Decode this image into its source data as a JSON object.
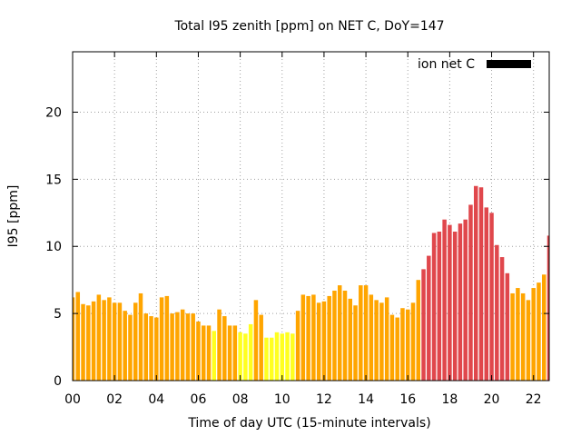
{
  "colors": {
    "high": "#e0474c",
    "mid": "#ffa500",
    "low": "#ffff20",
    "legend_swatch": "#000000",
    "grid": "#a0a0a0"
  },
  "chart_data": {
    "type": "bar",
    "title": "Total I95 zenith [ppm] on NET C, DoY=147",
    "xlabel": "Time of day UTC (15-minute intervals)",
    "ylabel": "I95 [ppm]",
    "xlim": [
      0,
      22.75
    ],
    "ylim": [
      0,
      24.5
    ],
    "x_ticks": [
      "00",
      "02",
      "04",
      "06",
      "08",
      "10",
      "12",
      "14",
      "16",
      "18",
      "20",
      "22"
    ],
    "x_tick_values": [
      0,
      2,
      4,
      6,
      8,
      10,
      12,
      14,
      16,
      18,
      20,
      22
    ],
    "y_ticks": [
      "0",
      "5",
      "10",
      "15",
      "20"
    ],
    "y_tick_values": [
      0,
      5,
      10,
      15,
      20
    ],
    "grid": true,
    "legend": {
      "label": "ion net C",
      "placement": "top-right"
    },
    "x_start": 0,
    "x_step": 0.25,
    "values": [
      6.2,
      6.6,
      5.7,
      5.6,
      5.9,
      6.4,
      6.0,
      6.2,
      5.8,
      5.8,
      5.2,
      4.9,
      5.8,
      6.5,
      5.0,
      4.8,
      4.7,
      6.2,
      6.3,
      5.0,
      5.1,
      5.3,
      5.0,
      5.0,
      4.4,
      4.1,
      4.1,
      3.7,
      5.3,
      4.8,
      4.1,
      4.1,
      3.6,
      3.5,
      4.2,
      6.0,
      4.9,
      3.2,
      3.2,
      3.6,
      3.5,
      3.6,
      3.5,
      5.2,
      6.4,
      6.3,
      6.4,
      5.8,
      5.9,
      6.3,
      6.7,
      7.1,
      6.7,
      6.1,
      5.6,
      7.1,
      7.1,
      6.4,
      6.0,
      5.8,
      6.2,
      4.9,
      4.7,
      5.4,
      5.3,
      5.8,
      7.5,
      8.3,
      9.3,
      11.0,
      11.1,
      12.0,
      11.6,
      11.1,
      11.7,
      12.0,
      13.1,
      14.5,
      14.4,
      12.9,
      12.5,
      10.1,
      9.2,
      8.0,
      6.5,
      6.9,
      6.5,
      6.0,
      6.9,
      7.3,
      7.9,
      10.8
    ],
    "color_class": [
      "mid",
      "mid",
      "mid",
      "mid",
      "mid",
      "mid",
      "mid",
      "mid",
      "mid",
      "mid",
      "mid",
      "mid",
      "mid",
      "mid",
      "mid",
      "mid",
      "mid",
      "mid",
      "mid",
      "mid",
      "mid",
      "mid",
      "mid",
      "mid",
      "mid",
      "mid",
      "mid",
      "low",
      "mid",
      "mid",
      "mid",
      "mid",
      "low",
      "low",
      "low",
      "mid",
      "mid",
      "low",
      "low",
      "low",
      "low",
      "low",
      "low",
      "mid",
      "mid",
      "mid",
      "mid",
      "mid",
      "mid",
      "mid",
      "mid",
      "mid",
      "mid",
      "mid",
      "mid",
      "mid",
      "mid",
      "mid",
      "mid",
      "mid",
      "mid",
      "mid",
      "mid",
      "mid",
      "mid",
      "mid",
      "mid",
      "high",
      "high",
      "high",
      "high",
      "high",
      "high",
      "high",
      "high",
      "high",
      "high",
      "high",
      "high",
      "high",
      "high",
      "high",
      "high",
      "high",
      "mid",
      "mid",
      "mid",
      "mid",
      "mid",
      "mid",
      "mid",
      "high"
    ]
  }
}
